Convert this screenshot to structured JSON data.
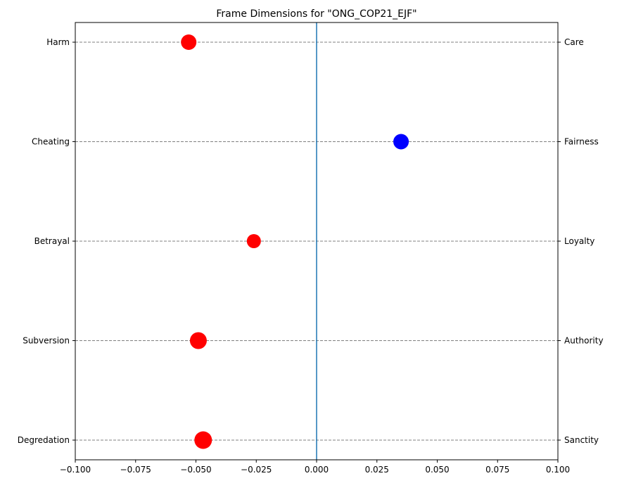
{
  "chart_data": {
    "type": "scatter",
    "title": "Frame Dimensions for \"ONG_COP21_EJF\"",
    "xlim": [
      -0.1,
      0.1
    ],
    "xticks": [
      -0.1,
      -0.075,
      -0.05,
      -0.025,
      0.0,
      0.025,
      0.05,
      0.075,
      0.1
    ],
    "xtick_labels": [
      "−0.100",
      "−0.075",
      "−0.050",
      "−0.025",
      "0.000",
      "0.025",
      "0.050",
      "0.075",
      "0.100"
    ],
    "left_labels": [
      "Harm",
      "Cheating",
      "Betrayal",
      "Subversion",
      "Degredation"
    ],
    "right_labels": [
      "Care",
      "Fairness",
      "Loyalty",
      "Authority",
      "Sanctity"
    ],
    "points": [
      {
        "x": -0.053,
        "color": "#ff0000",
        "size": 11
      },
      {
        "x": 0.035,
        "color": "#0000ff",
        "size": 11
      },
      {
        "x": -0.026,
        "color": "#ff0000",
        "size": 10
      },
      {
        "x": -0.049,
        "color": "#ff0000",
        "size": 12
      },
      {
        "x": -0.047,
        "color": "#ff0000",
        "size": 12.5
      }
    ],
    "zero_line": 0.0,
    "zero_line_color": "#1f77b4",
    "grid": "horizontal dashed"
  }
}
